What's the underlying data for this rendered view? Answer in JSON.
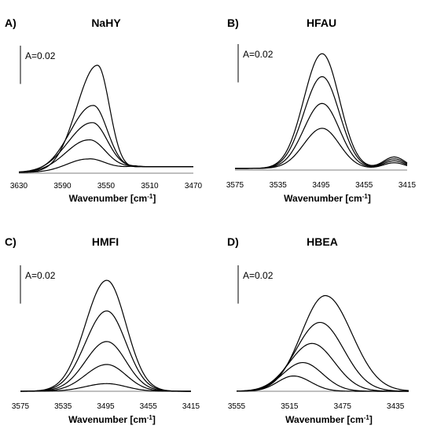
{
  "chart_data": [
    {
      "type": "line",
      "panel_label": "A)",
      "title": "NaHY",
      "xlabel": "Wavenumber [cm⁻¹]",
      "xlim": [
        3630,
        3470
      ],
      "x_ticks": [
        3630,
        3590,
        3550,
        3510,
        3470
      ],
      "scale_label": "A=0.02",
      "peak_center": 3560,
      "baseline_rise": 0.003,
      "series": [
        {
          "peak_x": 3558,
          "peak_y": 0.056,
          "sigma_left": 19,
          "sigma_right": 11
        },
        {
          "peak_x": 3562,
          "peak_y": 0.035,
          "sigma_left": 21,
          "sigma_right": 13
        },
        {
          "peak_x": 3563,
          "peak_y": 0.026,
          "sigma_left": 22,
          "sigma_right": 14
        },
        {
          "peak_x": 3566,
          "peak_y": 0.017,
          "sigma_left": 21,
          "sigma_right": 15
        },
        {
          "peak_x": 3567,
          "peak_y": 0.007,
          "sigma_left": 19,
          "sigma_right": 15
        }
      ]
    },
    {
      "type": "line",
      "panel_label": "B)",
      "title": "HFAU",
      "xlabel": "Wavenumber [cm⁻¹]",
      "xlim": [
        3575,
        3415
      ],
      "x_ticks": [
        3575,
        3535,
        3495,
        3455,
        3415
      ],
      "scale_label": "A=0.02",
      "shoulder_x": 3427,
      "series": [
        {
          "peak_x": 3494,
          "peak_y": 0.06,
          "sigma_left": 17,
          "sigma_right": 16,
          "shoulder": 0.006
        },
        {
          "peak_x": 3494,
          "peak_y": 0.048,
          "sigma_left": 17,
          "sigma_right": 16,
          "shoulder": 0.005
        },
        {
          "peak_x": 3494,
          "peak_y": 0.034,
          "sigma_left": 17,
          "sigma_right": 16,
          "shoulder": 0.004
        },
        {
          "peak_x": 3494,
          "peak_y": 0.021,
          "sigma_left": 17,
          "sigma_right": 16,
          "shoulder": 0.003
        }
      ]
    },
    {
      "type": "line",
      "panel_label": "C)",
      "title": "HMFI",
      "xlabel": "Wavenumber [cm⁻¹]",
      "xlim": [
        3575,
        3415
      ],
      "x_ticks": [
        3575,
        3535,
        3495,
        3455,
        3415
      ],
      "scale_label": "A=0.02",
      "series": [
        {
          "peak_x": 3494,
          "peak_y": 0.058,
          "sigma_left": 20,
          "sigma_right": 18
        },
        {
          "peak_x": 3494,
          "peak_y": 0.042,
          "sigma_left": 20,
          "sigma_right": 18
        },
        {
          "peak_x": 3494,
          "peak_y": 0.026,
          "sigma_left": 20,
          "sigma_right": 18
        },
        {
          "peak_x": 3494,
          "peak_y": 0.014,
          "sigma_left": 20,
          "sigma_right": 18
        },
        {
          "peak_x": 3494,
          "peak_y": 0.004,
          "sigma_left": 20,
          "sigma_right": 18
        }
      ]
    },
    {
      "type": "line",
      "panel_label": "D)",
      "title": "HBEA",
      "xlabel": "Wavenumber [cm⁻¹]",
      "xlim": [
        3555,
        3425
      ],
      "x_ticks": [
        3555,
        3515,
        3475,
        3435
      ],
      "scale_label": "A=0.02",
      "series": [
        {
          "peak_x": 3488,
          "peak_y": 0.05,
          "sigma_left": 18,
          "sigma_right": 20
        },
        {
          "peak_x": 3492,
          "peak_y": 0.036,
          "sigma_left": 18,
          "sigma_right": 18
        },
        {
          "peak_x": 3498,
          "peak_y": 0.025,
          "sigma_left": 17,
          "sigma_right": 17
        },
        {
          "peak_x": 3505,
          "peak_y": 0.015,
          "sigma_left": 15,
          "sigma_right": 15
        },
        {
          "peak_x": 3512,
          "peak_y": 0.008,
          "sigma_left": 12,
          "sigma_right": 13
        }
      ]
    }
  ]
}
